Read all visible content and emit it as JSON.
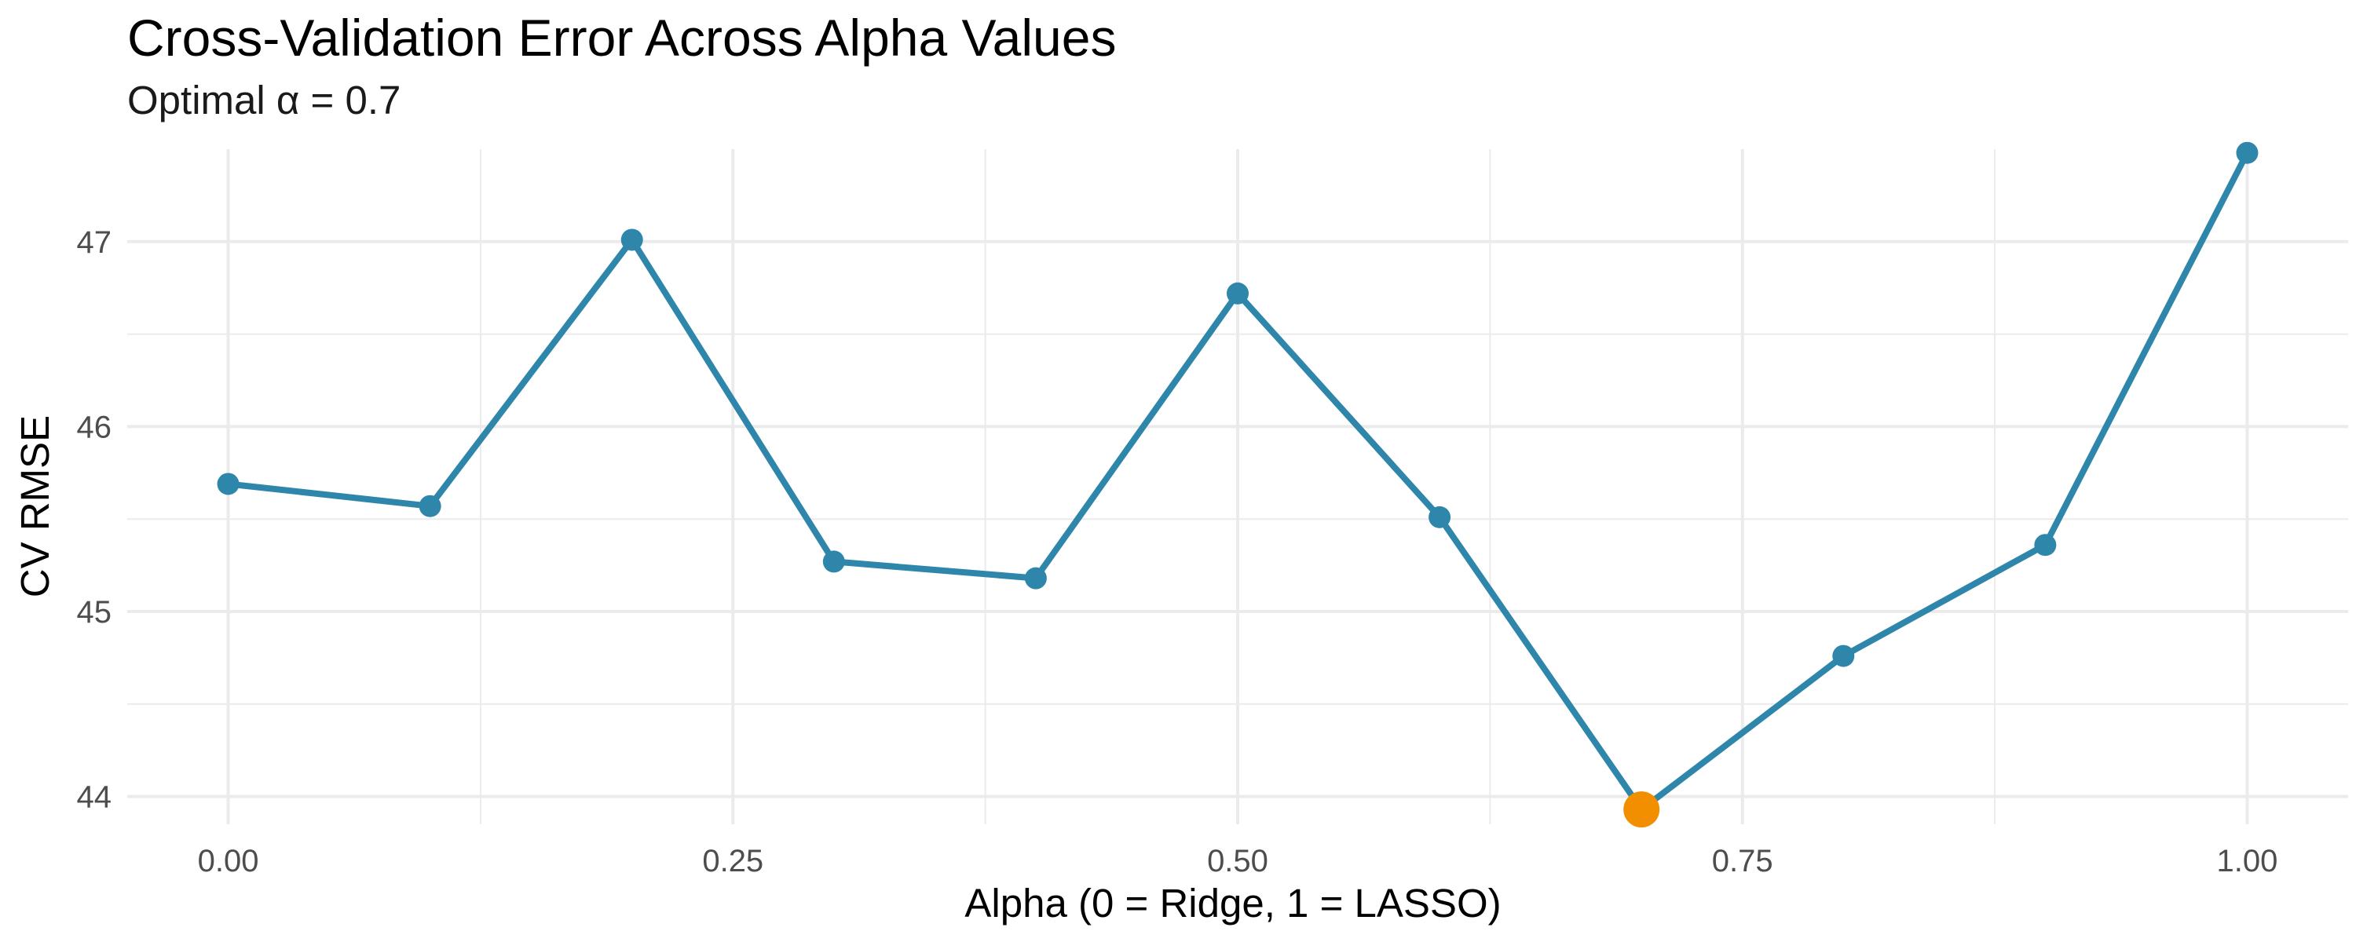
{
  "chart_data": {
    "type": "line",
    "title": "Cross-Validation Error Across Alpha Values",
    "subtitle": "Optimal α = 0.7",
    "xlabel": "Alpha (0 = Ridge, 1 = LASSO)",
    "ylabel": "CV RMSE",
    "x": [
      0.0,
      0.1,
      0.2,
      0.3,
      0.4,
      0.5,
      0.6,
      0.7,
      0.8,
      0.9,
      1.0
    ],
    "series": [
      {
        "values": [
          45.69,
          45.57,
          47.01,
          45.27,
          45.18,
          46.72,
          45.51,
          43.93,
          44.76,
          45.36,
          47.48
        ]
      }
    ],
    "highlight": {
      "x": 0.7,
      "y": 43.93
    },
    "xlim": [
      -0.05,
      1.05
    ],
    "ylim": [
      43.85,
      47.5
    ],
    "x_ticks": [
      0.0,
      0.25,
      0.5,
      0.75,
      1.0
    ],
    "x_tick_labels": [
      "0.00",
      "0.25",
      "0.50",
      "0.75",
      "1.00"
    ],
    "y_ticks": [
      44,
      45,
      46,
      47
    ],
    "y_tick_labels": [
      "44",
      "45",
      "46",
      "47"
    ],
    "grid": true,
    "colors": {
      "line": "#2E86AB",
      "highlight": "#F18F01",
      "grid": "#EBEBEB"
    }
  }
}
